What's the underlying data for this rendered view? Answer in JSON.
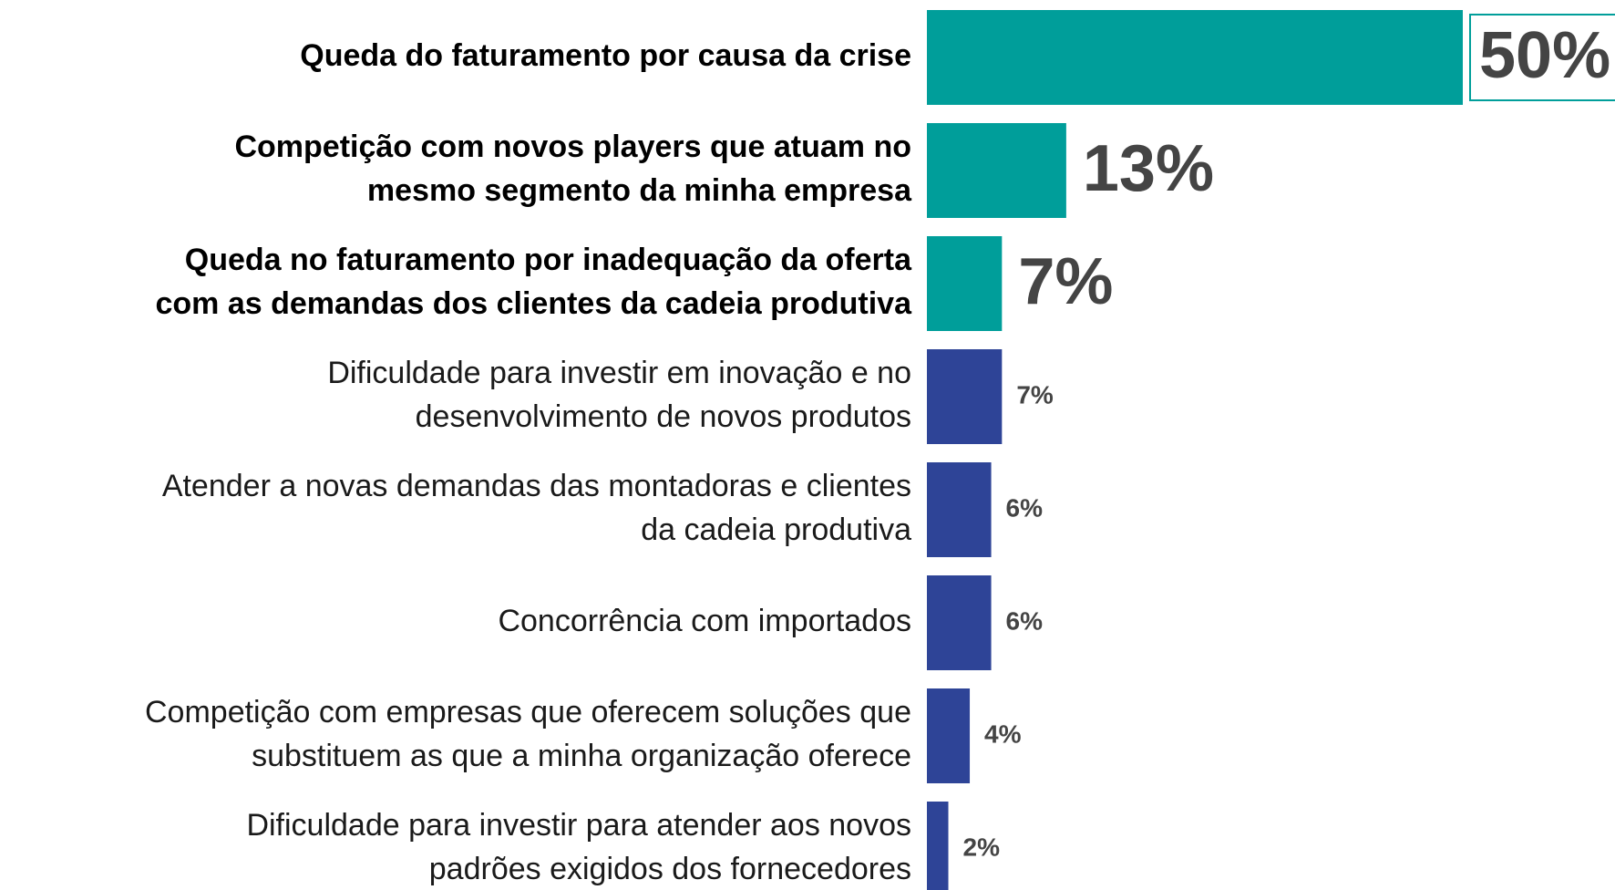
{
  "chart_data": {
    "type": "bar",
    "orientation": "horizontal",
    "categories": [
      [
        "Queda do faturamento por causa da crise"
      ],
      [
        "Competição com novos players que atuam no",
        "mesmo segmento da minha empresa"
      ],
      [
        "Queda no faturamento por inadequação da oferta",
        "com as demandas dos clientes da cadeia produtiva"
      ],
      [
        "Dificuldade para investir em inovação e no",
        "desenvolvimento de novos produtos"
      ],
      [
        "Atender a novas demandas das montadoras e clientes",
        "da cadeia produtiva"
      ],
      [
        "Concorrência com importados"
      ],
      [
        "Competição com empresas que oferecem soluções que",
        "substituem as que a minha organização oferece"
      ],
      [
        "Dificuldade para investir para atender aos novos",
        "padrões exigidos dos fornecedores"
      ]
    ],
    "values": [
      50,
      13,
      7,
      7,
      6,
      6,
      4,
      2
    ],
    "value_labels": [
      "50%",
      "13%",
      "7%",
      "7%",
      "6%",
      "6%",
      "4%",
      "2%"
    ],
    "colors": [
      "#009e9a",
      "#009e9a",
      "#009e9a",
      "#2e4497",
      "#2e4497",
      "#2e4497",
      "#2e4497",
      "#2e4497"
    ],
    "xlim": [
      0,
      50
    ]
  }
}
